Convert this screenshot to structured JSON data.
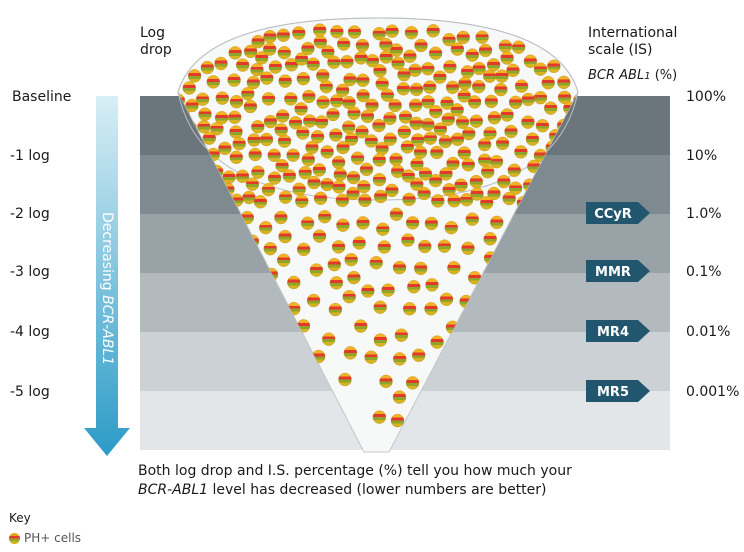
{
  "headers": {
    "log_drop": "Log\ndrop",
    "international_scale": "International\nscale (IS)",
    "bcr_abl_pct_prefix": "BCR ABL",
    "bcr_abl_pct_sub": "1",
    "bcr_abl_pct_suffix": " (%)"
  },
  "rows": [
    {
      "log": "Baseline",
      "percent": "100%",
      "milestone": ""
    },
    {
      "log": "-1 log",
      "percent": "10%",
      "milestone": ""
    },
    {
      "log": "-2 log",
      "percent": "1.0%",
      "milestone": "CCyR"
    },
    {
      "log": "-3 log",
      "percent": "0.1%",
      "milestone": "MMR"
    },
    {
      "log": "-4 log",
      "percent": "0.01%",
      "milestone": "MR4"
    },
    {
      "log": "-5 log",
      "percent": "0.001%",
      "milestone": "MR5"
    }
  ],
  "arrow": {
    "label_prefix": "Decreasing ",
    "label_italic": "BCR-ABL1"
  },
  "caption": {
    "line1": "Both log drop and I.S. percentage (%) tell you how much your",
    "line2_italic": "BCR-ABL1",
    "line2_rest": " level has decreased (lower numbers are better)"
  },
  "key": {
    "title": "Key",
    "item": "PH+ cells"
  },
  "colors": {
    "band_1": "#6b767c",
    "band_2": "#7f8a90",
    "band_3": "#98a2a7",
    "band_4": "#b2babe",
    "band_5": "#cbd1d4",
    "band_6": "#e3e6e8",
    "milestone": "#21566e",
    "arrow_top": "#d8eef5",
    "arrow_bottom": "#2c9bc7"
  }
}
